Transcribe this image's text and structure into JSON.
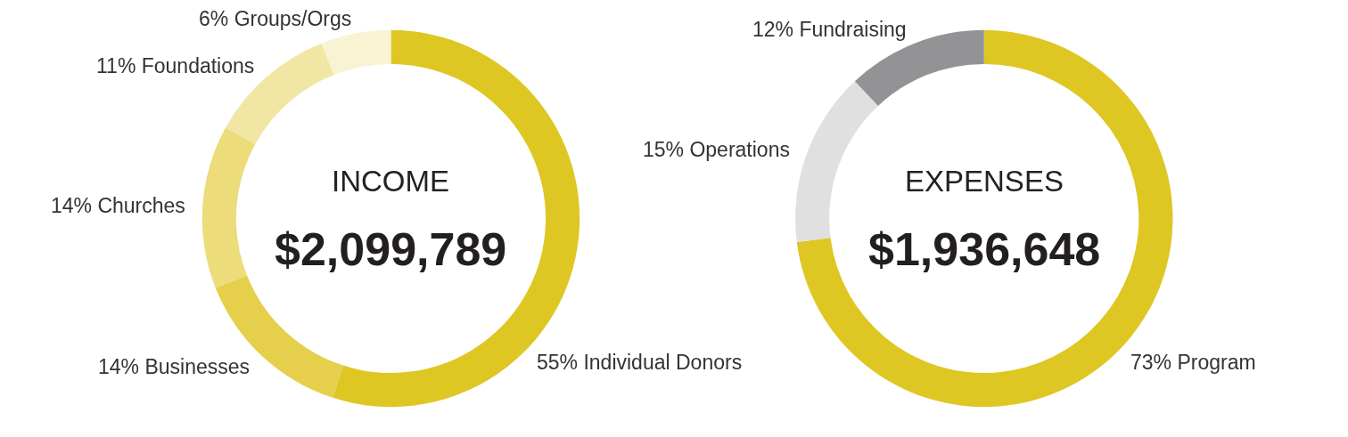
{
  "chart_data": [
    {
      "type": "donut",
      "title": "INCOME",
      "subtitle": "$2,099,789",
      "categories": [
        "Individual Donors",
        "Businesses",
        "Churches",
        "Foundations",
        "Groups/Orgs"
      ],
      "values": [
        55,
        14,
        14,
        11,
        6
      ],
      "value_labels": [
        "55%",
        "14%",
        "14%",
        "11%",
        "6%"
      ],
      "colors": [
        "#dec723",
        "#e5cf4b",
        "#ecdc7a",
        "#f1e6a3",
        "#f9f3d3"
      ]
    },
    {
      "type": "donut",
      "title": "EXPENSES",
      "subtitle": "$1,936,648",
      "categories": [
        "Program",
        "Operations",
        "Fundraising"
      ],
      "values": [
        73,
        15,
        12
      ],
      "value_labels": [
        "73%",
        "15%",
        "12%"
      ],
      "colors": [
        "#dec723",
        "#e0e0e1",
        "#939396"
      ]
    }
  ]
}
